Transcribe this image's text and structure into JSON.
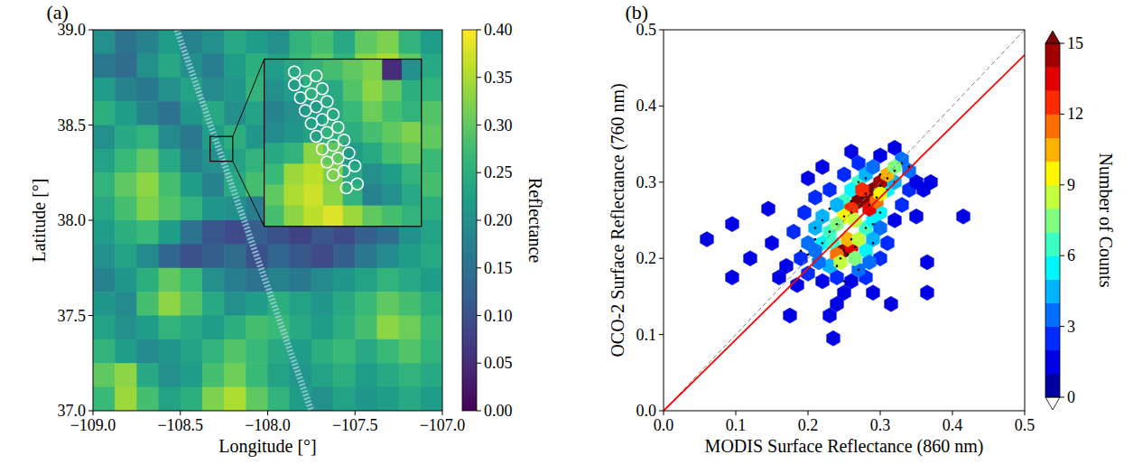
{
  "chart_data": [
    {
      "type": "heatmap",
      "title": "(a)",
      "x_label": "Longitude [°]",
      "y_label": "Latitude [°]",
      "xlim": [
        -109,
        -107
      ],
      "ylim": [
        37,
        39
      ],
      "xticks": [
        {
          "value": -109,
          "label": "−109.0"
        },
        {
          "value": -108.5,
          "label": "−108.5"
        },
        {
          "value": -108,
          "label": "−108.0"
        },
        {
          "value": -107.5,
          "label": "−107.5"
        },
        {
          "value": -107,
          "label": "−107.0"
        }
      ],
      "yticks": [
        {
          "value": 37,
          "label": "37.0"
        },
        {
          "value": 37.5,
          "label": "37.5"
        },
        {
          "value": 38,
          "label": "38.0"
        },
        {
          "value": 38.5,
          "label": "38.5"
        },
        {
          "value": 39,
          "label": "39.0"
        }
      ],
      "cells": [
        [
          0.2,
          0.15,
          0.18,
          0.22,
          0.18,
          0.2,
          0.24,
          0.22,
          0.2,
          0.26,
          0.28,
          0.24,
          0.3,
          0.32,
          0.26,
          0.22
        ],
        [
          0.16,
          0.14,
          0.2,
          0.24,
          0.2,
          0.17,
          0.22,
          0.25,
          0.23,
          0.27,
          0.3,
          0.26,
          0.33,
          0.35,
          0.3,
          0.24
        ],
        [
          0.22,
          0.18,
          0.16,
          0.2,
          0.23,
          0.19,
          0.21,
          0.26,
          0.28,
          0.24,
          0.27,
          0.31,
          0.36,
          0.3,
          0.28,
          0.26
        ],
        [
          0.25,
          0.22,
          0.18,
          0.15,
          0.21,
          0.24,
          0.2,
          0.23,
          0.27,
          0.29,
          0.25,
          0.28,
          0.32,
          0.27,
          0.25,
          0.29
        ],
        [
          0.2,
          0.24,
          0.26,
          0.19,
          0.16,
          0.22,
          0.25,
          0.21,
          0.24,
          0.3,
          0.27,
          0.24,
          0.26,
          0.23,
          0.27,
          0.3
        ],
        [
          0.23,
          0.27,
          0.3,
          0.24,
          0.18,
          0.2,
          0.23,
          0.26,
          0.22,
          0.25,
          0.22,
          0.2,
          0.23,
          0.26,
          0.29,
          0.27
        ],
        [
          0.26,
          0.3,
          0.33,
          0.28,
          0.22,
          0.18,
          0.24,
          0.28,
          0.25,
          0.2,
          0.17,
          0.19,
          0.24,
          0.22,
          0.25,
          0.28
        ],
        [
          0.24,
          0.28,
          0.32,
          0.29,
          0.26,
          0.21,
          0.2,
          0.17,
          0.14,
          0.12,
          0.1,
          0.13,
          0.15,
          0.18,
          0.22,
          0.25
        ],
        [
          0.22,
          0.25,
          0.27,
          0.22,
          0.15,
          0.11,
          0.09,
          0.12,
          0.1,
          0.08,
          0.11,
          0.09,
          0.12,
          0.14,
          0.2,
          0.23
        ],
        [
          0.2,
          0.23,
          0.19,
          0.13,
          0.1,
          0.12,
          0.14,
          0.1,
          0.13,
          0.11,
          0.09,
          0.12,
          0.16,
          0.19,
          0.22,
          0.24
        ],
        [
          0.18,
          0.21,
          0.25,
          0.3,
          0.27,
          0.2,
          0.17,
          0.15,
          0.18,
          0.16,
          0.19,
          0.21,
          0.23,
          0.26,
          0.24,
          0.22
        ],
        [
          0.21,
          0.19,
          0.28,
          0.33,
          0.29,
          0.24,
          0.2,
          0.22,
          0.25,
          0.23,
          0.21,
          0.24,
          0.27,
          0.3,
          0.28,
          0.25
        ],
        [
          0.23,
          0.2,
          0.22,
          0.26,
          0.24,
          0.22,
          0.25,
          0.28,
          0.27,
          0.24,
          0.22,
          0.25,
          0.28,
          0.33,
          0.31,
          0.27
        ],
        [
          0.26,
          0.22,
          0.19,
          0.21,
          0.23,
          0.26,
          0.29,
          0.27,
          0.24,
          0.22,
          0.25,
          0.27,
          0.24,
          0.27,
          0.29,
          0.26
        ],
        [
          0.3,
          0.33,
          0.24,
          0.2,
          0.22,
          0.28,
          0.31,
          0.27,
          0.23,
          0.21,
          0.23,
          0.25,
          0.22,
          0.24,
          0.26,
          0.24
        ],
        [
          0.27,
          0.34,
          0.28,
          0.23,
          0.25,
          0.32,
          0.35,
          0.3,
          0.26,
          0.22,
          0.2,
          0.23,
          0.21,
          0.22,
          0.24,
          0.22
        ]
      ],
      "color_range": [
        0,
        0.4
      ],
      "color_ticks": [
        {
          "value": 0,
          "label": "0.00"
        },
        {
          "value": 0.05,
          "label": "0.05"
        },
        {
          "value": 0.1,
          "label": "0.10"
        },
        {
          "value": 0.15,
          "label": "0.15"
        },
        {
          "value": 0.2,
          "label": "0.20"
        },
        {
          "value": 0.25,
          "label": "0.25"
        },
        {
          "value": 0.3,
          "label": "0.30"
        },
        {
          "value": 0.35,
          "label": "0.35"
        },
        {
          "value": 0.4,
          "label": "0.40"
        }
      ],
      "colorbar_label": "Reflectance",
      "track": {
        "x": [
          -108.52,
          -107.75
        ],
        "y": [
          39,
          37
        ]
      },
      "inset": {
        "xlim": [
          -108.33,
          -108.2
        ],
        "ylim": [
          38.31,
          38.44
        ],
        "cells": [
          [
            0.22,
            0.24,
            0.26,
            0.28,
            0.3,
            0.32,
            0.05,
            0.2
          ],
          [
            0.2,
            0.22,
            0.25,
            0.24,
            0.29,
            0.33,
            0.3,
            0.25
          ],
          [
            0.18,
            0.2,
            0.22,
            0.24,
            0.27,
            0.31,
            0.28,
            0.26
          ],
          [
            0.19,
            0.21,
            0.23,
            0.26,
            0.25,
            0.28,
            0.3,
            0.32
          ],
          [
            0.24,
            0.26,
            0.33,
            0.3,
            0.22,
            0.24,
            0.28,
            0.3
          ],
          [
            0.27,
            0.34,
            0.36,
            0.32,
            0.24,
            0.2,
            0.22,
            0.26
          ],
          [
            0.3,
            0.35,
            0.37,
            0.33,
            0.26,
            0.18,
            0.2,
            0.24
          ],
          [
            0.28,
            0.33,
            0.36,
            0.38,
            0.34,
            0.3,
            0.28,
            0.26
          ]
        ],
        "footprints": {
          "x": [
            -108.305,
            -108.305,
            -108.296,
            -108.287,
            -108.3,
            -108.291,
            -108.282,
            -108.296,
            -108.287,
            -108.278,
            -108.291,
            -108.282,
            -108.273,
            -108.287,
            -108.278,
            -108.269,
            -108.282,
            -108.273,
            -108.264,
            -108.278,
            -108.269,
            -108.26,
            -108.273,
            -108.264,
            -108.255,
            -108.262,
            -108.253
          ],
          "y": [
            38.43,
            38.42,
            38.423,
            38.427,
            38.41,
            38.413,
            38.417,
            38.4,
            38.403,
            38.407,
            38.39,
            38.393,
            38.397,
            38.38,
            38.383,
            38.387,
            38.37,
            38.373,
            38.377,
            38.36,
            38.363,
            38.367,
            38.35,
            38.353,
            38.357,
            38.34,
            38.343
          ]
        }
      }
    },
    {
      "type": "hexbin",
      "title": "(b)",
      "x_label": "MODIS Surface Reflectance (860 nm)",
      "y_label": "OCO-2 Surface Reflectance (760 nm)",
      "xlim": [
        0,
        0.5
      ],
      "ylim": [
        0,
        0.5
      ],
      "xticks": [
        {
          "value": 0,
          "label": "0.0"
        },
        0.1,
        0.2,
        0.3,
        0.4,
        0.5
      ],
      "yticks": [
        {
          "value": 0,
          "label": "0.0"
        },
        0.1,
        0.2,
        0.3,
        0.4,
        0.5
      ],
      "bins": {
        "x": [
          0.19,
          0.18,
          0.195,
          0.21,
          0.23,
          0.25,
          0.27,
          0.3,
          0.32,
          0.34,
          0.35,
          0.36,
          0.37,
          0.33,
          0.32,
          0.31,
          0.3,
          0.28,
          0.26,
          0.24,
          0.22,
          0.2,
          0.185,
          0.17,
          0.16,
          0.15,
          0.145,
          0.12,
          0.095,
          0.095,
          0.06,
          0.175,
          0.235,
          0.24,
          0.23,
          0.25,
          0.29,
          0.315,
          0.365,
          0.365,
          0.415,
          0.2,
          0.22,
          0.26,
          0.35,
          0.23,
          0.22,
          0.235,
          0.28,
          0.29,
          0.3,
          0.31,
          0.32,
          0.27,
          0.26,
          0.28,
          0.29,
          0.22,
          0.21,
          0.21,
          0.23,
          0.28,
          0.29,
          0.3,
          0.33,
          0.34,
          0.25,
          0.24,
          0.2,
          0.215,
          0.27,
          0.285,
          0.28,
          0.29,
          0.27,
          0.3,
          0.26,
          0.285,
          0.275,
          0.295,
          0.31,
          0.25,
          0.265,
          0.3,
          0.32,
          0.24,
          0.25,
          0.26,
          0.24,
          0.255,
          0.245,
          0.265,
          0.27
        ],
        "y": [
          0.2,
          0.235,
          0.26,
          0.28,
          0.29,
          0.31,
          0.325,
          0.335,
          0.345,
          0.29,
          0.3,
          0.29,
          0.3,
          0.27,
          0.25,
          0.22,
          0.2,
          0.175,
          0.17,
          0.175,
          0.17,
          0.18,
          0.165,
          0.19,
          0.175,
          0.22,
          0.265,
          0.2,
          0.175,
          0.245,
          0.225,
          0.125,
          0.095,
          0.14,
          0.125,
          0.155,
          0.155,
          0.14,
          0.195,
          0.155,
          0.255,
          0.305,
          0.32,
          0.34,
          0.255,
          0.235,
          0.22,
          0.22,
          0.24,
          0.25,
          0.26,
          0.29,
          0.3,
          0.3,
          0.29,
          0.31,
          0.32,
          0.255,
          0.24,
          0.21,
          0.19,
          0.21,
          0.225,
          0.24,
          0.33,
          0.315,
          0.275,
          0.27,
          0.22,
          0.195,
          0.185,
          0.195,
          0.28,
          0.29,
          0.275,
          0.3,
          0.265,
          0.265,
          0.29,
          0.275,
          0.31,
          0.255,
          0.25,
          0.285,
          0.32,
          0.245,
          0.21,
          0.215,
          0.205,
          0.225,
          0.195,
          0.2,
          0.225
        ],
        "counts": [
          2,
          2,
          2,
          2,
          2,
          2,
          2,
          1,
          1,
          2,
          1,
          1,
          1,
          2,
          1,
          2,
          2,
          2,
          1,
          2,
          1,
          2,
          1,
          1,
          1,
          1,
          1,
          1,
          1,
          1,
          1,
          1,
          1,
          1,
          1,
          1,
          1,
          1,
          1,
          1,
          1,
          1,
          1,
          1,
          1,
          6,
          5,
          6,
          6,
          5,
          5,
          5,
          4,
          6,
          5,
          4,
          3,
          4,
          4,
          3,
          4,
          5,
          4,
          3,
          3,
          3,
          6,
          4,
          3,
          3,
          3,
          3,
          15,
          15,
          15,
          14,
          12,
          13,
          12,
          11,
          10,
          9,
          8,
          9,
          7,
          7,
          15,
          13,
          11,
          10,
          8,
          7,
          8
        ]
      },
      "points": {
        "x": [
          0.27,
          0.28,
          0.29,
          0.3,
          0.26,
          0.275,
          0.285,
          0.295,
          0.31,
          0.25,
          0.265,
          0.255,
          0.245,
          0.26,
          0.24,
          0.27,
          0.22,
          0.23,
          0.21,
          0.28,
          0.3,
          0.32,
          0.33,
          0.24,
          0.25,
          0.2,
          0.29,
          0.31,
          0.27,
          0.26,
          0.23,
          0.28,
          0.25,
          0.22,
          0.3,
          0.29,
          0.32,
          0.19,
          0.34,
          0.21
        ],
        "y": [
          0.27,
          0.285,
          0.29,
          0.295,
          0.26,
          0.28,
          0.27,
          0.28,
          0.305,
          0.21,
          0.215,
          0.205,
          0.2,
          0.225,
          0.245,
          0.3,
          0.22,
          0.235,
          0.24,
          0.24,
          0.26,
          0.315,
          0.325,
          0.19,
          0.255,
          0.205,
          0.22,
          0.29,
          0.185,
          0.275,
          0.265,
          0.305,
          0.17,
          0.25,
          0.31,
          0.245,
          0.3,
          0.21,
          0.32,
          0.225
        ]
      },
      "series": [
        {
          "type": "line",
          "color": "#808080",
          "line_style": "dashed",
          "x": [
            0,
            0.5
          ],
          "y": [
            0,
            0.5
          ]
        },
        {
          "type": "line",
          "color": "#ff0000",
          "line_style": "solid",
          "x": [
            0,
            0.5
          ],
          "y": [
            0,
            0.467
          ]
        }
      ],
      "color_range": [
        0,
        15
      ],
      "color_ticks": [
        0,
        3,
        6,
        9,
        12,
        15
      ],
      "colorbar_label": "Number of Counts"
    }
  ]
}
